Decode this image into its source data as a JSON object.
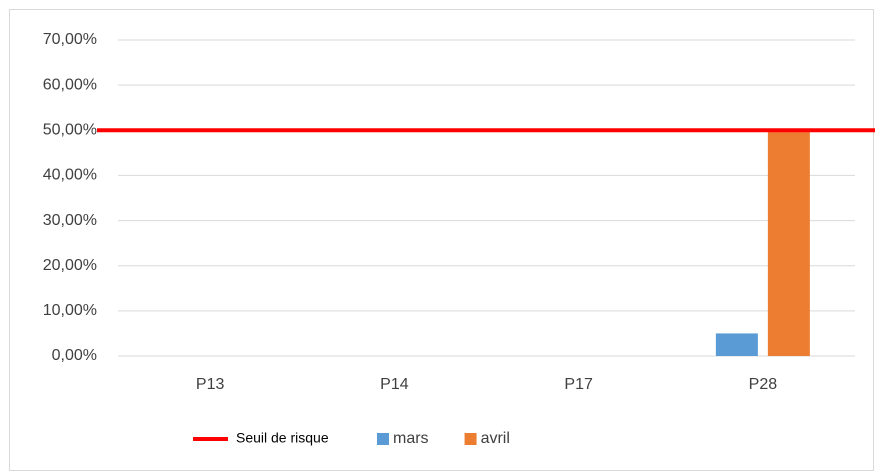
{
  "chart_data": {
    "type": "bar",
    "categories": [
      "P13",
      "P14",
      "P17",
      "P28"
    ],
    "series": [
      {
        "name": "mars",
        "color": "#5b9bd5",
        "values": [
          0,
          0,
          0,
          5
        ]
      },
      {
        "name": "avril",
        "color": "#ed7d31",
        "values": [
          0,
          0,
          0,
          50
        ]
      }
    ],
    "threshold": {
      "name": "Seuil de risque",
      "value": 50,
      "color": "#ff0000"
    },
    "ylim": [
      0,
      70
    ],
    "yticks": [
      {
        "value": 0,
        "label": "0,00%"
      },
      {
        "value": 10,
        "label": "10,00%"
      },
      {
        "value": 20,
        "label": "20,00%"
      },
      {
        "value": 30,
        "label": "30,00%"
      },
      {
        "value": 40,
        "label": "40,00%"
      },
      {
        "value": 50,
        "label": "50,00%"
      },
      {
        "value": 60,
        "label": "60,00%"
      },
      {
        "value": 70,
        "label": "70,00%"
      }
    ],
    "grid": true,
    "legend": "bottom"
  }
}
